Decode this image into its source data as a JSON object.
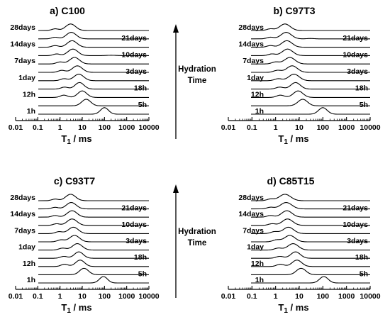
{
  "figure": {
    "side_label": [
      "Hydration",
      "Time"
    ],
    "axis_color": "#000000",
    "curve_color": "#000000"
  },
  "chart_data": [
    {
      "type": "line",
      "title": "a) C100",
      "xlabel_main": "T",
      "xlabel_sub": "1",
      "xlabel_unit": " / ms",
      "xscale": "log",
      "xlim": [
        0.01,
        10000
      ],
      "xticks": [
        "0.01",
        "0.1",
        "1",
        "10",
        "100",
        "1000",
        "10000"
      ],
      "series": [
        {
          "name": "28days",
          "peaks": [
            [
              0.6,
              0.25,
              0.15
            ],
            [
              3.0,
              1.0,
              0.22
            ]
          ]
        },
        {
          "name": "21days",
          "peaks": [
            [
              0.6,
              0.25,
              0.15
            ],
            [
              3.2,
              1.0,
              0.22
            ]
          ]
        },
        {
          "name": "14days",
          "peaks": [
            [
              0.6,
              0.25,
              0.15
            ],
            [
              3.5,
              1.0,
              0.22
            ]
          ]
        },
        {
          "name": "10days",
          "peaks": [
            [
              0.7,
              0.25,
              0.15
            ],
            [
              3.8,
              1.0,
              0.22
            ],
            [
              200,
              0.05,
              0.2
            ]
          ]
        },
        {
          "name": "7days",
          "peaks": [
            [
              1.0,
              0.3,
              0.16
            ],
            [
              4.5,
              1.0,
              0.22
            ]
          ]
        },
        {
          "name": "3days",
          "peaks": [
            [
              1.2,
              0.3,
              0.16
            ],
            [
              6.0,
              1.0,
              0.22
            ]
          ]
        },
        {
          "name": "1day",
          "peaks": [
            [
              1.5,
              0.3,
              0.16
            ],
            [
              7.0,
              1.0,
              0.22
            ]
          ]
        },
        {
          "name": "18h",
          "peaks": [
            [
              1.6,
              0.3,
              0.16
            ],
            [
              7.5,
              1.0,
              0.2
            ]
          ]
        },
        {
          "name": "12h",
          "peaks": [
            [
              1.5,
              0.35,
              0.16
            ],
            [
              10.0,
              1.0,
              0.2
            ]
          ]
        },
        {
          "name": "5h",
          "peaks": [
            [
              15.0,
              1.0,
              0.2
            ]
          ]
        },
        {
          "name": "1h",
          "peaks": [
            [
              100,
              1.0,
              0.18
            ]
          ]
        }
      ]
    },
    {
      "type": "line",
      "title": "b) C97T3",
      "xlabel_main": "T",
      "xlabel_sub": "1",
      "xlabel_unit": " / ms",
      "xscale": "log",
      "xlim": [
        0.01,
        10000
      ],
      "xticks": [
        "0.01",
        "0.1",
        "1",
        "10",
        "100",
        "1000",
        "10000"
      ],
      "series": [
        {
          "name": "28days",
          "peaks": [
            [
              0.6,
              0.25,
              0.15
            ],
            [
              2.5,
              1.0,
              0.22
            ]
          ]
        },
        {
          "name": "21days",
          "peaks": [
            [
              0.6,
              0.25,
              0.15
            ],
            [
              2.8,
              1.0,
              0.22
            ],
            [
              30,
              0.06,
              0.15
            ]
          ]
        },
        {
          "name": "14days",
          "peaks": [
            [
              0.6,
              0.25,
              0.15
            ],
            [
              3.0,
              1.0,
              0.22
            ]
          ]
        },
        {
          "name": "10days",
          "peaks": [
            [
              0.7,
              0.25,
              0.15
            ],
            [
              3.2,
              1.0,
              0.22
            ]
          ]
        },
        {
          "name": "7days",
          "peaks": [
            [
              1.0,
              0.3,
              0.16
            ],
            [
              4.0,
              1.0,
              0.22
            ]
          ]
        },
        {
          "name": "3days",
          "peaks": [
            [
              1.2,
              0.3,
              0.16
            ],
            [
              5.0,
              1.0,
              0.22
            ]
          ]
        },
        {
          "name": "1day",
          "peaks": [
            [
              1.3,
              0.3,
              0.16
            ],
            [
              6.0,
              1.0,
              0.22
            ]
          ]
        },
        {
          "name": "18h",
          "peaks": [
            [
              1.5,
              0.3,
              0.16
            ],
            [
              7.0,
              1.0,
              0.2
            ]
          ]
        },
        {
          "name": "12h",
          "peaks": [
            [
              1.6,
              0.35,
              0.16
            ],
            [
              9.0,
              1.0,
              0.2
            ]
          ]
        },
        {
          "name": "5h",
          "peaks": [
            [
              14.0,
              1.0,
              0.2
            ]
          ]
        },
        {
          "name": "1h",
          "peaks": [
            [
              100,
              1.0,
              0.18
            ]
          ]
        }
      ]
    },
    {
      "type": "line",
      "title": "c) C93T7",
      "xlabel_main": "T",
      "xlabel_sub": "1",
      "xlabel_unit": " / ms",
      "xscale": "log",
      "xlim": [
        0.01,
        10000
      ],
      "xticks": [
        "0.01",
        "0.1",
        "1",
        "10",
        "100",
        "1000",
        "10000"
      ],
      "series": [
        {
          "name": "28days",
          "peaks": [
            [
              0.6,
              0.25,
              0.15
            ],
            [
              3.0,
              1.0,
              0.22
            ]
          ]
        },
        {
          "name": "21days",
          "peaks": [
            [
              0.6,
              0.25,
              0.15
            ],
            [
              3.2,
              1.0,
              0.22
            ]
          ]
        },
        {
          "name": "14days",
          "peaks": [
            [
              0.6,
              0.25,
              0.15
            ],
            [
              3.5,
              1.0,
              0.22
            ]
          ]
        },
        {
          "name": "10days",
          "peaks": [
            [
              0.7,
              0.25,
              0.15
            ],
            [
              3.5,
              1.0,
              0.22
            ]
          ]
        },
        {
          "name": "7days",
          "peaks": [
            [
              0.9,
              0.3,
              0.16
            ],
            [
              4.0,
              1.0,
              0.22
            ]
          ]
        },
        {
          "name": "3days",
          "peaks": [
            [
              1.1,
              0.3,
              0.16
            ],
            [
              4.5,
              1.0,
              0.22
            ]
          ]
        },
        {
          "name": "1day",
          "peaks": [
            [
              1.3,
              0.3,
              0.16
            ],
            [
              6.0,
              1.0,
              0.22
            ]
          ]
        },
        {
          "name": "18h",
          "peaks": [
            [
              1.5,
              0.3,
              0.16
            ],
            [
              7.0,
              1.0,
              0.2
            ]
          ]
        },
        {
          "name": "12h",
          "peaks": [
            [
              1.6,
              0.35,
              0.16
            ],
            [
              8.0,
              1.0,
              0.2
            ]
          ]
        },
        {
          "name": "5h",
          "peaks": [
            [
              12.0,
              1.0,
              0.2
            ]
          ]
        },
        {
          "name": "1h",
          "peaks": [
            [
              90,
              1.0,
              0.18
            ]
          ]
        }
      ]
    },
    {
      "type": "line",
      "title": "d) C85T15",
      "xlabel_main": "T",
      "xlabel_sub": "1",
      "xlabel_unit": " / ms",
      "xscale": "log",
      "xlim": [
        0.01,
        10000
      ],
      "xticks": [
        "0.01",
        "0.1",
        "1",
        "10",
        "100",
        "1000",
        "10000"
      ],
      "series": [
        {
          "name": "28days",
          "peaks": [
            [
              0.6,
              0.25,
              0.15
            ],
            [
              2.5,
              1.0,
              0.24
            ]
          ]
        },
        {
          "name": "21days",
          "peaks": [
            [
              0.6,
              0.25,
              0.15
            ],
            [
              2.8,
              1.0,
              0.24
            ]
          ]
        },
        {
          "name": "14days",
          "peaks": [
            [
              0.6,
              0.25,
              0.15
            ],
            [
              3.0,
              1.0,
              0.22
            ]
          ]
        },
        {
          "name": "10days",
          "peaks": [
            [
              0.7,
              0.25,
              0.15
            ],
            [
              3.2,
              1.0,
              0.22
            ]
          ]
        },
        {
          "name": "7days",
          "peaks": [
            [
              0.9,
              0.3,
              0.16
            ],
            [
              3.5,
              1.0,
              0.22
            ]
          ]
        },
        {
          "name": "3days",
          "peaks": [
            [
              1.1,
              0.3,
              0.16
            ],
            [
              4.0,
              1.0,
              0.22
            ]
          ]
        },
        {
          "name": "1day",
          "peaks": [
            [
              1.3,
              0.3,
              0.16
            ],
            [
              5.5,
              1.0,
              0.22
            ]
          ]
        },
        {
          "name": "18h",
          "peaks": [
            [
              1.5,
              0.3,
              0.16
            ],
            [
              7.0,
              1.0,
              0.2
            ]
          ]
        },
        {
          "name": "12h",
          "peaks": [
            [
              1.6,
              0.35,
              0.16
            ],
            [
              8.0,
              1.0,
              0.2
            ]
          ]
        },
        {
          "name": "5h",
          "peaks": [
            [
              12.0,
              1.0,
              0.2
            ]
          ]
        },
        {
          "name": "1h",
          "peaks": [
            [
              110,
              1.0,
              0.18
            ]
          ]
        }
      ]
    }
  ]
}
